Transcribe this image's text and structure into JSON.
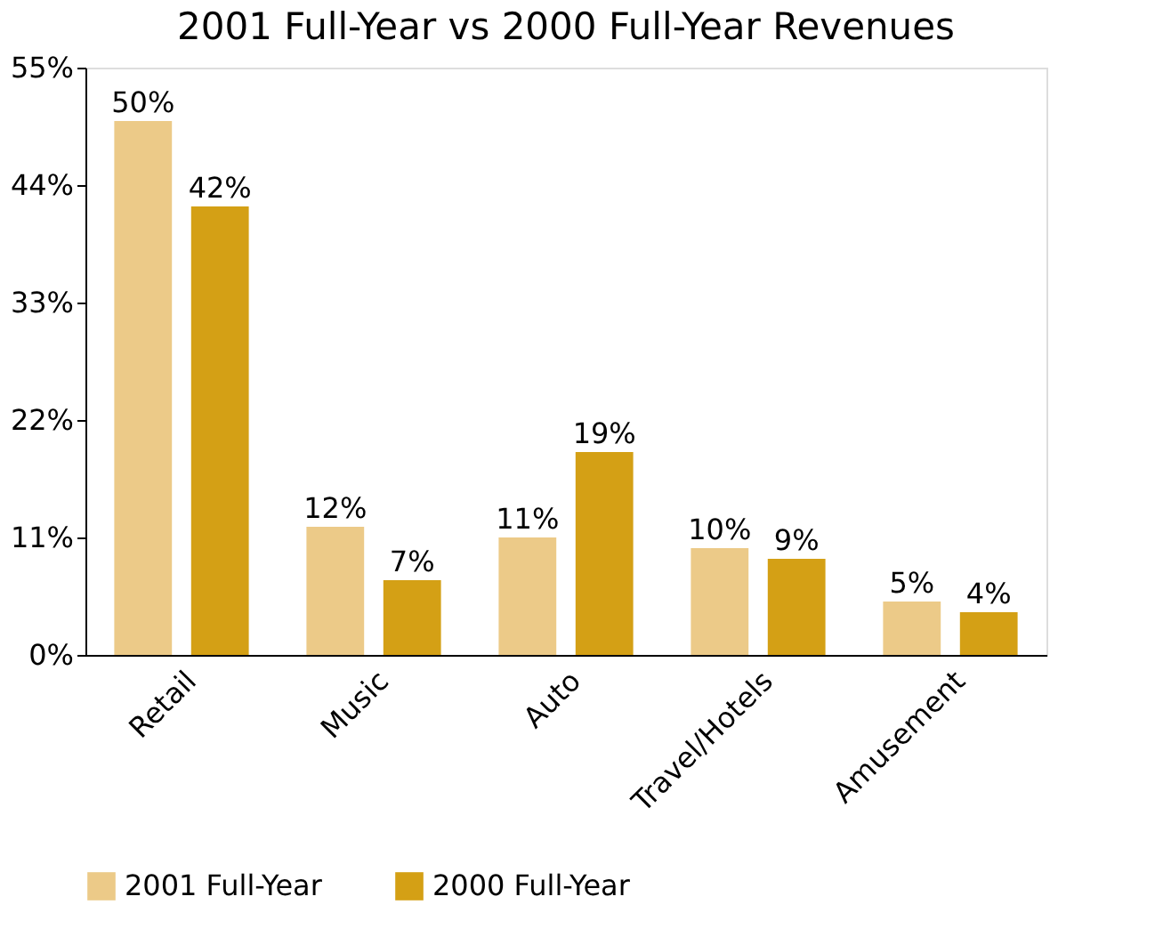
{
  "chart_data": {
    "type": "bar",
    "title": "2001 Full-Year vs 2000 Full-Year Revenues",
    "categories": [
      "Retail",
      "Music",
      "Auto",
      "Travel/Hotels",
      "Amusement"
    ],
    "series": [
      {
        "name": "2001 Full-Year",
        "color": "#ecca88",
        "values": [
          50,
          12,
          11,
          10,
          5
        ],
        "value_labels": [
          "50%",
          "12%",
          "11%",
          "10%",
          "5%"
        ]
      },
      {
        "name": "2000 Full-Year",
        "color": "#d4a015",
        "values": [
          42,
          7,
          19,
          9,
          4
        ],
        "value_labels": [
          "42%",
          "7%",
          "19%",
          "9%",
          "4%"
        ]
      }
    ],
    "ylim": [
      0,
      55
    ],
    "yticks": [
      {
        "value": 0,
        "label": "0%"
      },
      {
        "value": 11,
        "label": "11%"
      },
      {
        "value": 22,
        "label": "22%"
      },
      {
        "value": 33,
        "label": "33%"
      },
      {
        "value": 44,
        "label": "44%"
      },
      {
        "value": 55,
        "label": "55%"
      }
    ],
    "grid": false,
    "legend": "bottom"
  }
}
